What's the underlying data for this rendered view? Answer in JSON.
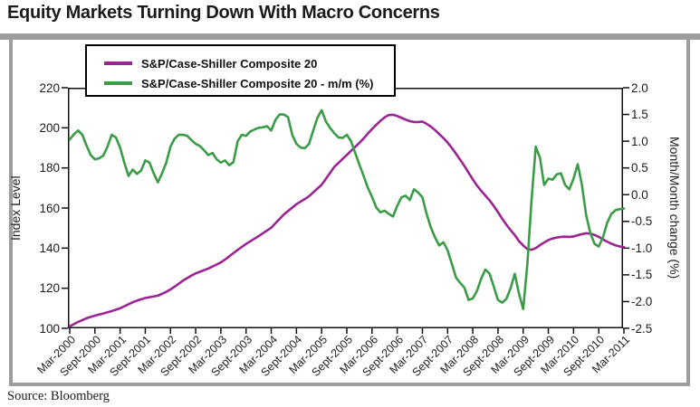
{
  "title": "Equity Markets Turning Down With Macro Concerns",
  "source": "Source: Bloomberg",
  "colors": {
    "index_line": "#9b2493",
    "mm_line": "#3a9c47",
    "frame_gray": "#9d9d9d",
    "axis_black": "#111111"
  },
  "legend": [
    {
      "label": "S&P/Case-Shiller Composite 20",
      "color": "#9b2493"
    },
    {
      "label": "S&P/Case-Shiller Composite 20 - m/m (%)",
      "color": "#3a9c47"
    }
  ],
  "chart_data": {
    "type": "line",
    "title": "Equity Markets Turning Down With Macro Concerns",
    "x_tick_labels": [
      "Mar-2000",
      "Sept-2000",
      "Mar-2001",
      "Sept-2001",
      "Mar-2002",
      "Sept-2002",
      "Mar-2003",
      "Sept-2003",
      "Mar-2004",
      "Sept-2004",
      "Mar-2005",
      "Sept-2005",
      "Mar-2006",
      "Sept-2006",
      "Mar-2007",
      "Sept-2007",
      "Mar-2008",
      "Sept-2008",
      "Mar-2009",
      "Sept-2009",
      "Mar-2010",
      "Sept-2010",
      "Mar-2011"
    ],
    "x_months_per_point": 1,
    "x_start": "Mar-2000",
    "x_end": "Mar-2011",
    "grid": false,
    "legend_position": "top-left",
    "left_axis": {
      "label": "Index Level",
      "range": [
        100,
        220
      ],
      "tick_labels": [
        "220",
        "200",
        "180",
        "160",
        "140",
        "120",
        "100"
      ],
      "ticks": [
        220,
        200,
        180,
        160,
        140,
        120,
        100
      ]
    },
    "right_axis": {
      "label": "Month/Month change (%)",
      "range": [
        -2.5,
        2.0
      ],
      "tick_labels": [
        "2.0",
        "1.5",
        "1.0",
        "0.5",
        "0.0",
        "-0.5",
        "-1.0",
        "-1.5",
        "-2.0",
        "-2.5"
      ],
      "ticks": [
        2.0,
        1.5,
        1.0,
        0.5,
        0.0,
        -0.5,
        -1.0,
        -1.5,
        -2.0,
        -2.5
      ]
    },
    "series": [
      {
        "name": "S&P/Case-Shiller Composite 20",
        "axis": "left",
        "color": "#9b2493",
        "values": [
          101.0,
          102.1,
          103.2,
          104.1,
          105.0,
          105.7,
          106.3,
          106.9,
          107.4,
          108.0,
          108.6,
          109.3,
          110.0,
          111.0,
          112.0,
          113.0,
          113.8,
          114.5,
          115.1,
          115.5,
          115.9,
          116.3,
          117.2,
          118.2,
          119.4,
          120.8,
          122.3,
          123.8,
          125.1,
          126.3,
          127.4,
          128.2,
          129.0,
          129.8,
          130.8,
          131.8,
          132.9,
          134.3,
          135.9,
          137.5,
          139.1,
          140.6,
          142.1,
          143.4,
          144.7,
          146.0,
          147.4,
          148.8,
          150.2,
          152.4,
          154.6,
          156.8,
          158.5,
          160.2,
          161.9,
          163.2,
          164.5,
          165.9,
          167.8,
          169.7,
          171.6,
          174.5,
          177.5,
          180.5,
          182.5,
          184.5,
          186.5,
          188.5,
          190.5,
          192.5,
          194.7,
          197.1,
          199.4,
          201.5,
          203.5,
          205.2,
          206.4,
          206.5,
          205.9,
          205.0,
          204.1,
          203.3,
          202.9,
          202.9,
          203.1,
          202.0,
          200.6,
          198.9,
          196.9,
          194.9,
          192.7,
          190.0,
          187.1,
          184.1,
          181.0,
          177.6,
          174.3,
          171.2,
          168.6,
          166.2,
          163.8,
          161.0,
          157.9,
          154.7,
          151.7,
          149.0,
          146.5,
          143.5,
          141.3,
          139.5,
          139.2,
          140.0,
          141.5,
          142.8,
          144.0,
          144.8,
          145.3,
          145.6,
          145.7,
          145.6,
          145.8,
          146.4,
          147.0,
          147.4,
          147.2,
          146.6,
          145.6,
          144.4,
          143.2,
          142.2,
          141.4,
          140.8,
          140.5
        ]
      },
      {
        "name": "S&P/Case-Shiller Composite 20 - m/m (%)",
        "axis": "right",
        "color": "#3a9c47",
        "values": [
          1.03,
          1.13,
          1.2,
          1.12,
          0.92,
          0.74,
          0.66,
          0.68,
          0.73,
          0.9,
          1.12,
          1.07,
          0.88,
          0.6,
          0.35,
          0.47,
          0.39,
          0.45,
          0.64,
          0.6,
          0.4,
          0.23,
          0.4,
          0.6,
          0.9,
          1.05,
          1.12,
          1.12,
          1.1,
          1.02,
          0.95,
          0.91,
          0.83,
          0.74,
          0.78,
          0.66,
          0.6,
          0.64,
          0.55,
          0.61,
          1.0,
          1.12,
          1.1,
          1.18,
          1.22,
          1.25,
          1.26,
          1.28,
          1.2,
          1.4,
          1.5,
          1.5,
          1.45,
          1.12,
          0.95,
          0.88,
          0.87,
          0.95,
          1.2,
          1.44,
          1.58,
          1.37,
          1.25,
          1.15,
          1.07,
          1.06,
          1.12,
          1.0,
          0.78,
          0.56,
          0.35,
          0.13,
          -0.04,
          -0.24,
          -0.33,
          -0.3,
          -0.36,
          -0.41,
          -0.21,
          -0.05,
          -0.02,
          -0.1,
          0.1,
          0.04,
          -0.05,
          -0.36,
          -0.61,
          -0.8,
          -0.95,
          -0.89,
          -1.04,
          -1.29,
          -1.55,
          -1.65,
          -1.74,
          -1.97,
          -1.94,
          -1.8,
          -1.57,
          -1.4,
          -1.48,
          -1.72,
          -1.97,
          -2.02,
          -1.95,
          -1.75,
          -1.48,
          -1.85,
          -2.14,
          -1.3,
          -0.1,
          0.9,
          0.69,
          0.18,
          0.3,
          0.28,
          0.38,
          0.4,
          0.18,
          0.1,
          0.3,
          0.57,
          0.18,
          -0.38,
          -0.72,
          -0.92,
          -0.97,
          -0.8,
          -0.53,
          -0.36,
          -0.29,
          -0.27,
          -0.26
        ]
      }
    ]
  }
}
